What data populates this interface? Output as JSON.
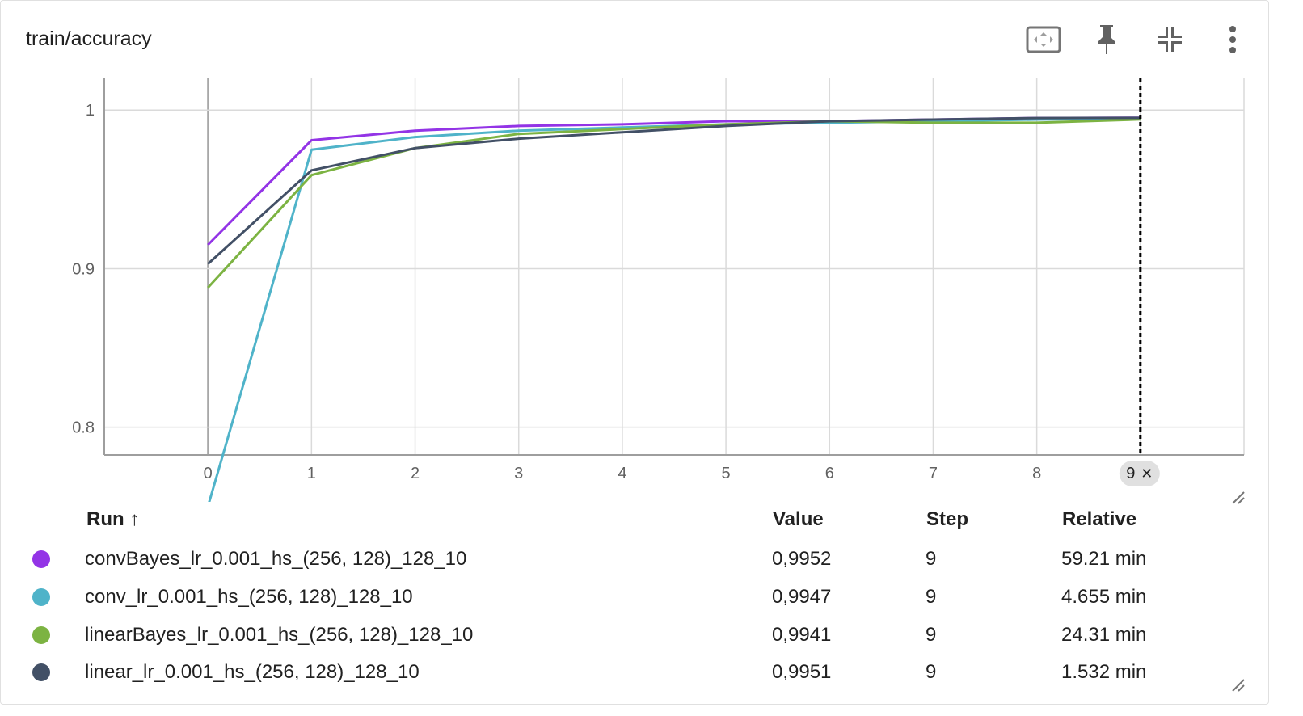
{
  "card": {
    "title": "train/accuracy",
    "toolbar": {
      "fit_icon": "fit-to-domain-icon",
      "pin_icon": "pin-icon",
      "collapse_icon": "fullscreen-exit-icon",
      "menu_icon": "more-vert-icon"
    }
  },
  "chart_data": {
    "type": "line",
    "title": "train/accuracy",
    "xlabel": "",
    "ylabel": "",
    "x": [
      0,
      1,
      2,
      3,
      4,
      5,
      6,
      7,
      8,
      9
    ],
    "xlim": [
      -1,
      10
    ],
    "ylim": [
      0.7825,
      1.02
    ],
    "yticks": [
      0.8,
      0.9,
      1
    ],
    "ytick_labels": [
      "0.8",
      "0.9",
      "1"
    ],
    "xticks": [
      0,
      1,
      2,
      3,
      4,
      5,
      6,
      7,
      8
    ],
    "grid": true,
    "hover_step_label": "9",
    "hover_close_glyph": "✕",
    "series": [
      {
        "name": "convBayes_lr_0.001_hs_(256, 128)_128_10",
        "color": "#9334e6",
        "values": [
          0.915,
          0.981,
          0.987,
          0.99,
          0.991,
          0.993,
          0.993,
          0.994,
          0.995,
          0.9952
        ]
      },
      {
        "name": "conv_lr_0.001_hs_(256, 128)_128_10",
        "color": "#4fb3c9",
        "values": [
          0.75,
          0.975,
          0.983,
          0.987,
          0.989,
          0.991,
          0.992,
          0.993,
          0.994,
          0.9947
        ]
      },
      {
        "name": "linearBayes_lr_0.001_hs_(256, 128)_128_10",
        "color": "#7cb342",
        "values": [
          0.888,
          0.959,
          0.976,
          0.985,
          0.988,
          0.991,
          0.993,
          0.992,
          0.992,
          0.9941
        ]
      },
      {
        "name": "linear_lr_0.001_hs_(256, 128)_128_10",
        "color": "#425066",
        "values": [
          0.903,
          0.962,
          0.976,
          0.982,
          0.986,
          0.99,
          0.993,
          0.994,
          0.995,
          0.9951
        ]
      }
    ]
  },
  "table": {
    "headers": {
      "run": "Run ↑",
      "value": "Value",
      "step": "Step",
      "relative": "Relative"
    },
    "rows": [
      {
        "run": "convBayes_lr_0.001_hs_(256, 128)_128_10",
        "value": "0,9952",
        "step": "9",
        "relative": "59.21 min",
        "color": "#9334e6"
      },
      {
        "run": "conv_lr_0.001_hs_(256, 128)_128_10",
        "value": "0,9947",
        "step": "9",
        "relative": "4.655 min",
        "color": "#4fb3c9"
      },
      {
        "run": "linearBayes_lr_0.001_hs_(256, 128)_128_10",
        "value": "0,9941",
        "step": "9",
        "relative": "24.31 min",
        "color": "#7cb342"
      },
      {
        "run": "linear_lr_0.001_hs_(256, 128)_128_10",
        "value": "0,9951",
        "step": "9",
        "relative": "1.532 min",
        "color": "#425066"
      }
    ]
  }
}
